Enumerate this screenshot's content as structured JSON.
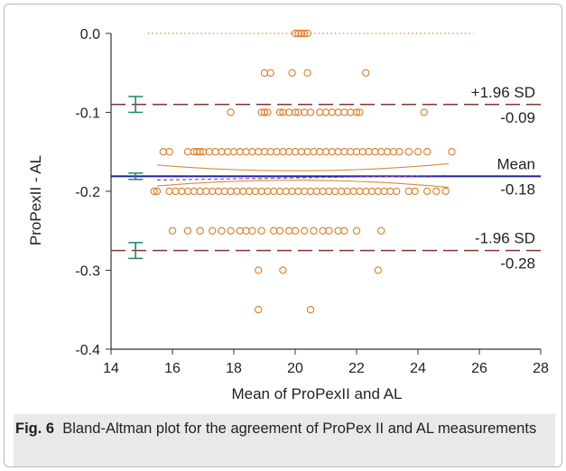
{
  "caption": {
    "label": "Fig. 6",
    "text": "Bland-Altman plot for the agreement of ProPex II and AL measurements"
  },
  "chart_data": {
    "type": "scatter",
    "title": "",
    "xlabel": "Mean of ProPexII and AL",
    "ylabel": "ProPexII - AL",
    "xlim": [
      14,
      28
    ],
    "ylim": [
      -0.4,
      0.0
    ],
    "xticks": [
      14,
      16,
      18,
      20,
      22,
      24,
      26,
      28
    ],
    "yticks": [
      0.0,
      -0.1,
      -0.2,
      -0.3,
      -0.4
    ],
    "ytick_labels": [
      "0.0",
      "-0.1",
      "-0.2",
      "-0.3",
      "-0.4"
    ],
    "grid": false,
    "colors": {
      "points": "#e07b24",
      "mean": "#1f1f9e",
      "loa": "#8a3030",
      "ci": "#1a8a6e",
      "fit": "#d98c3a",
      "zero": "#d98c3a"
    },
    "reference_lines": [
      {
        "name": "+1.96 SD",
        "value_label": "-0.09",
        "y": -0.09,
        "ci": [
          -0.1,
          -0.08
        ]
      },
      {
        "name": "Mean",
        "value_label": "-0.18",
        "y": -0.181,
        "ci": [
          -0.185,
          -0.177
        ]
      },
      {
        "name": "-1.96 SD",
        "value_label": "-0.28",
        "y": -0.275,
        "ci": [
          -0.285,
          -0.265
        ]
      }
    ],
    "series": [
      {
        "x": [
          20.0,
          20.1,
          20.2,
          20.3,
          20.4,
          19.0,
          19.2,
          19.9,
          20.4,
          22.3,
          17.9,
          18.9,
          19.0,
          19.1,
          19.5,
          19.6,
          19.8,
          20.0,
          20.1,
          20.3,
          20.5,
          20.8,
          21.0,
          21.2,
          21.4,
          21.6,
          21.8,
          22.0,
          22.1,
          24.2,
          15.7,
          15.9,
          16.5,
          16.7,
          16.8,
          16.9,
          17.0,
          17.2,
          17.4,
          17.6,
          17.8,
          18.0,
          18.2,
          18.4,
          18.6,
          18.8,
          19.0,
          19.2,
          19.4,
          19.6,
          19.8,
          20.0,
          20.2,
          20.4,
          20.6,
          20.8,
          21.0,
          21.2,
          21.4,
          21.6,
          21.8,
          22.0,
          22.2,
          22.4,
          22.6,
          22.8,
          23.0,
          23.2,
          23.4,
          23.7,
          24.0,
          24.3,
          25.1,
          15.4,
          15.5,
          15.9,
          16.1,
          16.3,
          16.5,
          16.7,
          16.9,
          17.1,
          17.3,
          17.5,
          17.7,
          17.9,
          18.1,
          18.3,
          18.5,
          18.7,
          18.9,
          19.1,
          19.3,
          19.5,
          19.7,
          19.9,
          20.1,
          20.3,
          20.5,
          20.7,
          20.9,
          21.1,
          21.3,
          21.5,
          21.7,
          21.9,
          22.1,
          22.3,
          22.5,
          22.7,
          22.9,
          23.1,
          23.3,
          23.7,
          23.9,
          24.3,
          24.6,
          24.9,
          16.0,
          16.5,
          16.9,
          17.3,
          17.6,
          17.9,
          18.2,
          18.4,
          18.6,
          18.9,
          19.3,
          19.5,
          19.8,
          20.0,
          20.3,
          20.6,
          20.9,
          21.1,
          21.4,
          21.6,
          22.0,
          22.8,
          18.8,
          19.6,
          22.7,
          18.8,
          20.5
        ],
        "y": [
          0.0,
          0.0,
          0.0,
          0.0,
          0.0,
          -0.05,
          -0.05,
          -0.05,
          -0.05,
          -0.05,
          -0.1,
          -0.1,
          -0.1,
          -0.1,
          -0.1,
          -0.1,
          -0.1,
          -0.1,
          -0.1,
          -0.1,
          -0.1,
          -0.1,
          -0.1,
          -0.1,
          -0.1,
          -0.1,
          -0.1,
          -0.1,
          -0.1,
          -0.1,
          -0.15,
          -0.15,
          -0.15,
          -0.15,
          -0.15,
          -0.15,
          -0.15,
          -0.15,
          -0.15,
          -0.15,
          -0.15,
          -0.15,
          -0.15,
          -0.15,
          -0.15,
          -0.15,
          -0.15,
          -0.15,
          -0.15,
          -0.15,
          -0.15,
          -0.15,
          -0.15,
          -0.15,
          -0.15,
          -0.15,
          -0.15,
          -0.15,
          -0.15,
          -0.15,
          -0.15,
          -0.15,
          -0.15,
          -0.15,
          -0.15,
          -0.15,
          -0.15,
          -0.15,
          -0.15,
          -0.15,
          -0.15,
          -0.15,
          -0.15,
          -0.2,
          -0.2,
          -0.2,
          -0.2,
          -0.2,
          -0.2,
          -0.2,
          -0.2,
          -0.2,
          -0.2,
          -0.2,
          -0.2,
          -0.2,
          -0.2,
          -0.2,
          -0.2,
          -0.2,
          -0.2,
          -0.2,
          -0.2,
          -0.2,
          -0.2,
          -0.2,
          -0.2,
          -0.2,
          -0.2,
          -0.2,
          -0.2,
          -0.2,
          -0.2,
          -0.2,
          -0.2,
          -0.2,
          -0.2,
          -0.2,
          -0.2,
          -0.2,
          -0.2,
          -0.2,
          -0.2,
          -0.2,
          -0.2,
          -0.2,
          -0.2,
          -0.2,
          -0.25,
          -0.25,
          -0.25,
          -0.25,
          -0.25,
          -0.25,
          -0.25,
          -0.25,
          -0.25,
          -0.25,
          -0.25,
          -0.25,
          -0.25,
          -0.25,
          -0.25,
          -0.25,
          -0.25,
          -0.25,
          -0.25,
          -0.25,
          -0.25,
          -0.25,
          -0.3,
          -0.3,
          -0.3,
          -0.35,
          -0.35
        ]
      }
    ]
  }
}
